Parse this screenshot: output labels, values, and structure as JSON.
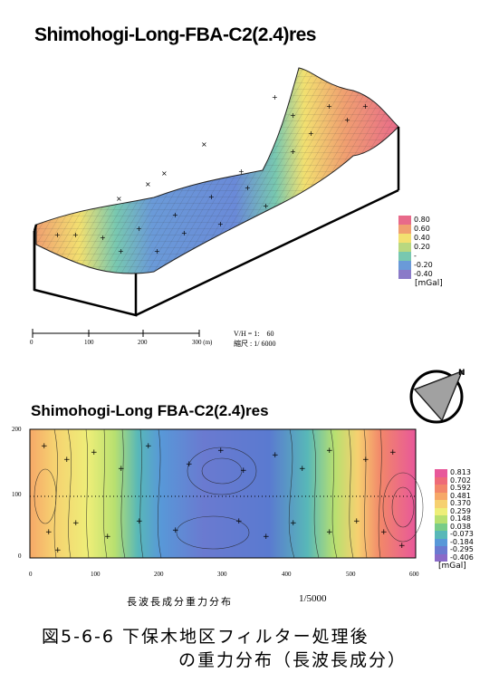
{
  "top": {
    "title": "Shimohogi-Long-FBA-C2(2.4)res",
    "legend_items": [
      "0.80",
      "0.60",
      "0.40",
      "0.20",
      "-",
      "-0.20",
      "-0.40"
    ],
    "legend_colors": [
      "#e86a8a",
      "#f0a070",
      "#f2e070",
      "#b8d880",
      "#78c8b0",
      "#6a9ad8",
      "#8a7ac8"
    ],
    "legend_unit": "[mGal]",
    "scale_labels": [
      "0",
      "100",
      "200",
      "300 (m)"
    ],
    "vh_label": "V/H = 1:",
    "vh_value": "60",
    "scale_text": "縮尺 : 1/ 6000"
  },
  "bottom": {
    "title": "Shimohogi-Long FBA-C2(2.4)res",
    "legend_items": [
      "0.813",
      "0.702",
      "0.592",
      "0.481",
      "0.370",
      "0.259",
      "0.148",
      "0.038",
      "-0.073",
      "-0.184",
      "-0.295",
      "-0.406"
    ],
    "legend_colors": [
      "#e8589a",
      "#ee6a78",
      "#f2866a",
      "#f6a868",
      "#f6d070",
      "#eeee78",
      "#b8e070",
      "#78cc88",
      "#58b8b8",
      "#5898d8",
      "#6a7ad0",
      "#8a6ac8"
    ],
    "legend_unit": "[mGal]",
    "y_ticks": [
      "200",
      "100",
      "0"
    ],
    "x_ticks": [
      "0",
      "100",
      "200",
      "300",
      "400",
      "500",
      "600"
    ],
    "subtitle": "長波長成分重力分布",
    "scale": "1/5000"
  },
  "caption": {
    "line1": "図5-6-6  下保木地区フィルター処理後",
    "line2": "の重力分布（長波長成分）"
  }
}
